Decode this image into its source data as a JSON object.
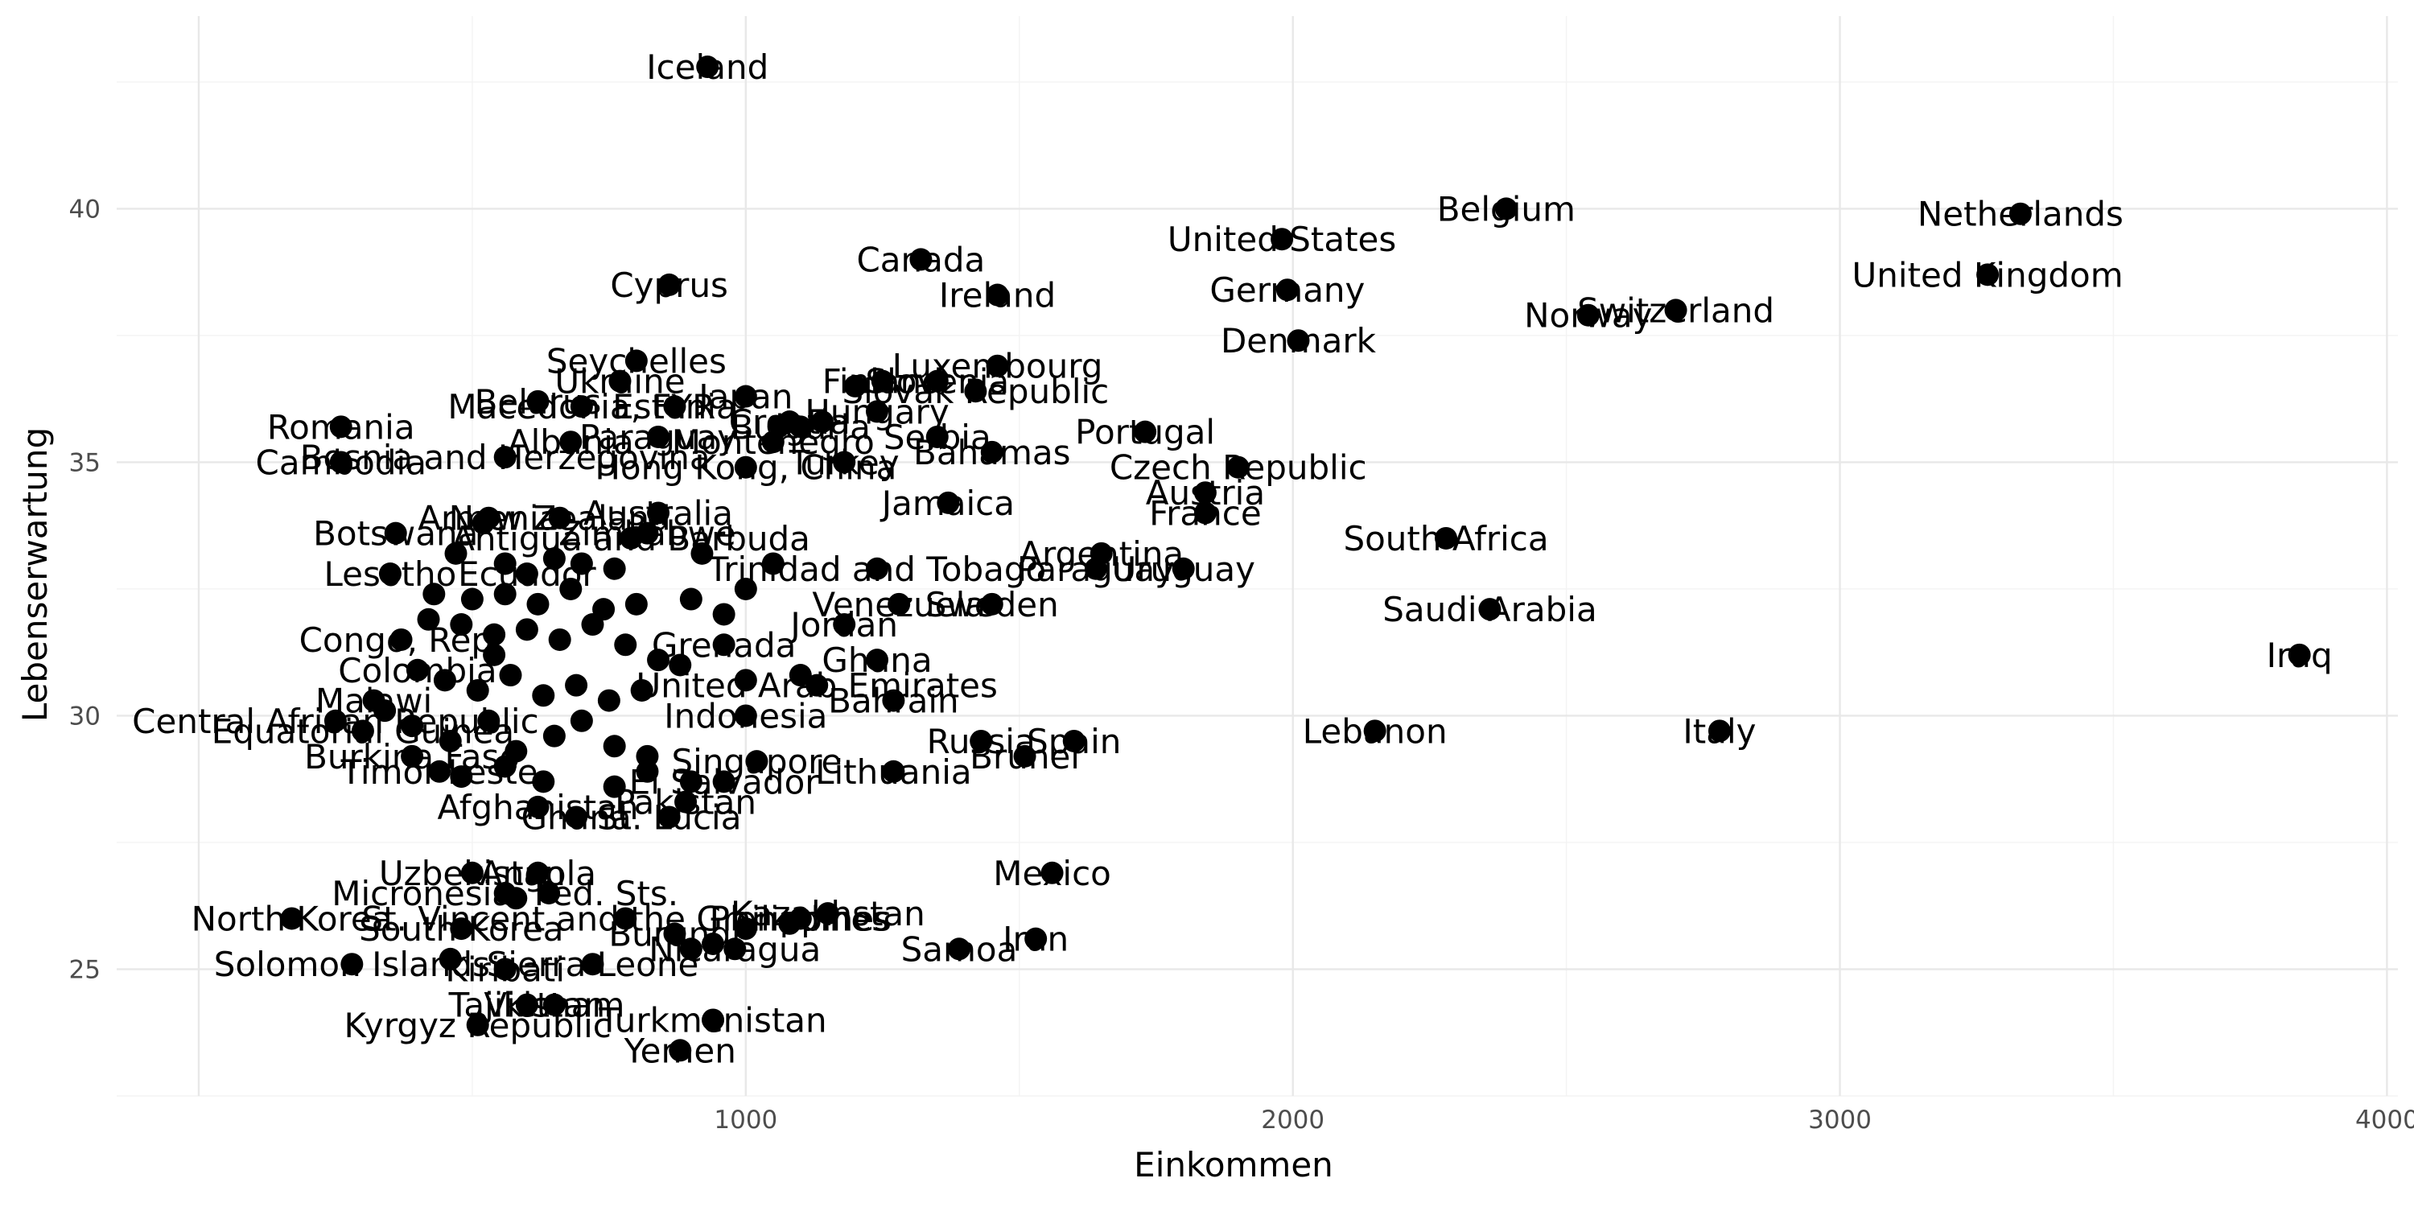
{
  "chart_data": {
    "type": "scatter",
    "xlabel": "Einkommen",
    "ylabel": "Lebenserwartung",
    "xlim": [
      -150,
      4020
    ],
    "ylim": [
      22.5,
      43.8
    ],
    "x_ticks": [
      1000,
      2000,
      3000,
      4000
    ],
    "x_tick_labels": [
      "1000",
      "2000",
      "3000",
      "4000"
    ],
    "y_ticks": [
      25,
      30,
      35,
      40
    ],
    "y_tick_labels": [
      "25",
      "30",
      "35",
      "40"
    ],
    "grid": true,
    "legend": "none",
    "points": [
      {
        "label": "Iceland",
        "x": 930,
        "y": 42.8
      },
      {
        "label": "Belgium",
        "x": 2390,
        "y": 40.0
      },
      {
        "label": "Netherlands",
        "x": 3330,
        "y": 39.9
      },
      {
        "label": "United States",
        "x": 1980,
        "y": 39.4
      },
      {
        "label": "Canada",
        "x": 1320,
        "y": 39.0
      },
      {
        "label": "United Kingdom",
        "x": 3270,
        "y": 38.7
      },
      {
        "label": "Cyprus",
        "x": 860,
        "y": 38.5
      },
      {
        "label": "Germany",
        "x": 1990,
        "y": 38.4
      },
      {
        "label": "Ireland",
        "x": 1460,
        "y": 38.3
      },
      {
        "label": "Switzerland",
        "x": 2700,
        "y": 38.0
      },
      {
        "label": "Norway",
        "x": 2540,
        "y": 37.9
      },
      {
        "label": "Denmark",
        "x": 2010,
        "y": 37.4
      },
      {
        "label": "Seychelles",
        "x": 800,
        "y": 37.0
      },
      {
        "label": "Luxembourg",
        "x": 1460,
        "y": 36.9
      },
      {
        "label": "Ukraine",
        "x": 770,
        "y": 36.6
      },
      {
        "label": "Finland",
        "x": 1250,
        "y": 36.6
      },
      {
        "label": "Slovenia",
        "x": 1350,
        "y": 36.6
      },
      {
        "label": "Slovak Republic",
        "x": 1420,
        "y": 36.4
      },
      {
        "label": "Japan",
        "x": 1000,
        "y": 36.3
      },
      {
        "label": "Belarus",
        "x": 620,
        "y": 36.2
      },
      {
        "label": "Macedonia, FYR",
        "x": 700,
        "y": 36.1
      },
      {
        "label": "Estonia",
        "x": 870,
        "y": 36.1
      },
      {
        "label": "Hungary",
        "x": 1240,
        "y": 36.0
      },
      {
        "label": "Croatia",
        "x": 1080,
        "y": 35.8
      },
      {
        "label": "Bulgaria",
        "x": 1100,
        "y": 35.7
      },
      {
        "label": "Romania",
        "x": 260,
        "y": 35.7
      },
      {
        "label": "Portugal",
        "x": 1730,
        "y": 35.6
      },
      {
        "label": "Serbia",
        "x": 1350,
        "y": 35.5
      },
      {
        "label": "Paraguay",
        "x": 840,
        "y": 35.5
      },
      {
        "label": "Albania",
        "x": 680,
        "y": 35.4
      },
      {
        "label": "Montenegro",
        "x": 1050,
        "y": 35.4
      },
      {
        "label": "Bahamas",
        "x": 1450,
        "y": 35.2
      },
      {
        "label": "Bosnia and Herzegovina",
        "x": 560,
        "y": 35.1
      },
      {
        "label": "Cambodia",
        "x": 260,
        "y": 35.0
      },
      {
        "label": "Turkey",
        "x": 1180,
        "y": 35.0
      },
      {
        "label": "Czech Republic",
        "x": 1900,
        "y": 34.9
      },
      {
        "label": "Hong Kong, China",
        "x": 1000,
        "y": 34.9
      },
      {
        "label": "Austria",
        "x": 1840,
        "y": 34.4
      },
      {
        "label": "Jamaica",
        "x": 1370,
        "y": 34.2
      },
      {
        "label": "Australia",
        "x": 840,
        "y": 34.0
      },
      {
        "label": "France",
        "x": 1840,
        "y": 34.0
      },
      {
        "label": "Armenia",
        "x": 530,
        "y": 33.9
      },
      {
        "label": "New Zealand",
        "x": 660,
        "y": 33.9
      },
      {
        "label": "Zimbabwe",
        "x": 820,
        "y": 33.6
      },
      {
        "label": "Botswana",
        "x": 360,
        "y": 33.6
      },
      {
        "label": "Antigua and Barbuda",
        "x": 790,
        "y": 33.5
      },
      {
        "label": "South Africa",
        "x": 2280,
        "y": 33.5
      },
      {
        "label": "Argentina",
        "x": 1650,
        "y": 33.2
      },
      {
        "label": "Uruguay",
        "x": 1800,
        "y": 32.9
      },
      {
        "label": "Paraguay2",
        "x": 1640,
        "y": 32.9
      },
      {
        "label": "Trinidad and Tobago",
        "x": 1240,
        "y": 32.9
      },
      {
        "label": "Lesotho",
        "x": 350,
        "y": 32.8
      },
      {
        "label": "Ecuador",
        "x": 600,
        "y": 32.8
      },
      {
        "label": "Venezuela",
        "x": 1280,
        "y": 32.2
      },
      {
        "label": "Sweden",
        "x": 1450,
        "y": 32.2
      },
      {
        "label": "Saudi Arabia",
        "x": 2360,
        "y": 32.1
      },
      {
        "label": "Jordan",
        "x": 1180,
        "y": 31.8
      },
      {
        "label": "Congo, Rep.",
        "x": 370,
        "y": 31.5
      },
      {
        "label": "Grenada",
        "x": 960,
        "y": 31.4
      },
      {
        "label": "Iraq",
        "x": 3840,
        "y": 31.2
      },
      {
        "label": "Ghana",
        "x": 1240,
        "y": 31.1
      },
      {
        "label": "Colombia",
        "x": 400,
        "y": 30.9
      },
      {
        "label": "United Arab Emirates",
        "x": 1130,
        "y": 30.6
      },
      {
        "label": "Bahrain",
        "x": 1270,
        "y": 30.3
      },
      {
        "label": "Malawi",
        "x": 320,
        "y": 30.3
      },
      {
        "label": "Indonesia",
        "x": 1000,
        "y": 30.0
      },
      {
        "label": "Central African Republic",
        "x": 250,
        "y": 29.9
      },
      {
        "label": "Equatorial Guinea",
        "x": 300,
        "y": 29.7
      },
      {
        "label": "Lebanon",
        "x": 2150,
        "y": 29.7
      },
      {
        "label": "Italy",
        "x": 2780,
        "y": 29.7
      },
      {
        "label": "Russia",
        "x": 1430,
        "y": 29.5
      },
      {
        "label": "Spain",
        "x": 1600,
        "y": 29.5
      },
      {
        "label": "Brunei",
        "x": 1510,
        "y": 29.2
      },
      {
        "label": "Burkina Faso",
        "x": 390,
        "y": 29.2
      },
      {
        "label": "Singapore",
        "x": 1020,
        "y": 29.1
      },
      {
        "label": "Lithuania",
        "x": 1270,
        "y": 28.9
      },
      {
        "label": "Timor-Leste",
        "x": 440,
        "y": 28.9
      },
      {
        "label": "El Salvador",
        "x": 960,
        "y": 28.7
      },
      {
        "label": "Afghanistan",
        "x": 620,
        "y": 28.2
      },
      {
        "label": "Pakistan",
        "x": 890,
        "y": 28.3
      },
      {
        "label": "St. Lucia",
        "x": 860,
        "y": 28.0
      },
      {
        "label": "Ghana2",
        "x": 690,
        "y": 28.0
      },
      {
        "label": "Mexico",
        "x": 1560,
        "y": 26.9
      },
      {
        "label": "Uzbekistan",
        "x": 500,
        "y": 26.9
      },
      {
        "label": "Angola",
        "x": 620,
        "y": 26.9
      },
      {
        "label": "Micronesia, Fed. Sts.",
        "x": 560,
        "y": 26.5
      },
      {
        "label": "Kazakhstan",
        "x": 1150,
        "y": 26.1
      },
      {
        "label": "North Korea",
        "x": 170,
        "y": 26.0
      },
      {
        "label": "St. Vincent and the Grenadines",
        "x": 780,
        "y": 26.0
      },
      {
        "label": "Philippines",
        "x": 1100,
        "y": 26.0
      },
      {
        "label": "South Korea",
        "x": 480,
        "y": 25.8
      },
      {
        "label": "Burundi",
        "x": 870,
        "y": 25.7
      },
      {
        "label": "Iran",
        "x": 1530,
        "y": 25.6
      },
      {
        "label": "Samoa",
        "x": 1390,
        "y": 25.4
      },
      {
        "label": "Nicaragua",
        "x": 980,
        "y": 25.4
      },
      {
        "label": "Solomon Islands",
        "x": 280,
        "y": 25.1
      },
      {
        "label": "Sierra Leone",
        "x": 720,
        "y": 25.1
      },
      {
        "label": "Kiribati",
        "x": 560,
        "y": 25.0
      },
      {
        "label": "Tajikistan",
        "x": 600,
        "y": 24.3
      },
      {
        "label": "Vietnam",
        "x": 650,
        "y": 24.3
      },
      {
        "label": "Turkmenistan",
        "x": 940,
        "y": 24.0
      },
      {
        "label": "Kyrgyz Republic",
        "x": 510,
        "y": 23.9
      },
      {
        "label": "Yemen",
        "x": 880,
        "y": 23.4
      }
    ],
    "extra_points": [
      {
        "x": 520,
        "y": 33.8
      },
      {
        "x": 470,
        "y": 33.2
      },
      {
        "x": 560,
        "y": 33.0
      },
      {
        "x": 650,
        "y": 33.1
      },
      {
        "x": 700,
        "y": 33.0
      },
      {
        "x": 760,
        "y": 32.9
      },
      {
        "x": 430,
        "y": 32.4
      },
      {
        "x": 500,
        "y": 32.3
      },
      {
        "x": 560,
        "y": 32.4
      },
      {
        "x": 620,
        "y": 32.2
      },
      {
        "x": 680,
        "y": 32.5
      },
      {
        "x": 740,
        "y": 32.1
      },
      {
        "x": 800,
        "y": 32.2
      },
      {
        "x": 900,
        "y": 32.3
      },
      {
        "x": 960,
        "y": 32.0
      },
      {
        "x": 1050,
        "y": 33.0
      },
      {
        "x": 420,
        "y": 31.9
      },
      {
        "x": 480,
        "y": 31.8
      },
      {
        "x": 540,
        "y": 31.6
      },
      {
        "x": 600,
        "y": 31.7
      },
      {
        "x": 660,
        "y": 31.5
      },
      {
        "x": 720,
        "y": 31.8
      },
      {
        "x": 780,
        "y": 31.4
      },
      {
        "x": 840,
        "y": 31.1
      },
      {
        "x": 880,
        "y": 31.0
      },
      {
        "x": 450,
        "y": 30.7
      },
      {
        "x": 510,
        "y": 30.5
      },
      {
        "x": 570,
        "y": 30.8
      },
      {
        "x": 630,
        "y": 30.4
      },
      {
        "x": 690,
        "y": 30.6
      },
      {
        "x": 750,
        "y": 30.3
      },
      {
        "x": 810,
        "y": 30.5
      },
      {
        "x": 1000,
        "y": 30.7
      },
      {
        "x": 1100,
        "y": 30.8
      },
      {
        "x": 340,
        "y": 30.1
      },
      {
        "x": 390,
        "y": 29.8
      },
      {
        "x": 460,
        "y": 29.5
      },
      {
        "x": 530,
        "y": 29.9
      },
      {
        "x": 580,
        "y": 29.3
      },
      {
        "x": 650,
        "y": 29.6
      },
      {
        "x": 700,
        "y": 29.9
      },
      {
        "x": 760,
        "y": 29.4
      },
      {
        "x": 820,
        "y": 29.2
      },
      {
        "x": 480,
        "y": 28.8
      },
      {
        "x": 560,
        "y": 29.0
      },
      {
        "x": 630,
        "y": 28.7
      },
      {
        "x": 760,
        "y": 28.6
      },
      {
        "x": 820,
        "y": 28.9
      },
      {
        "x": 900,
        "y": 28.7
      },
      {
        "x": 640,
        "y": 26.5
      },
      {
        "x": 580,
        "y": 26.4
      },
      {
        "x": 900,
        "y": 25.4
      },
      {
        "x": 940,
        "y": 25.5
      },
      {
        "x": 1000,
        "y": 25.8
      },
      {
        "x": 1080,
        "y": 25.9
      },
      {
        "x": 460,
        "y": 25.2
      },
      {
        "x": 540,
        "y": 31.2
      },
      {
        "x": 920,
        "y": 33.2
      },
      {
        "x": 1000,
        "y": 32.5
      },
      {
        "x": 1060,
        "y": 35.7
      },
      {
        "x": 1140,
        "y": 35.8
      },
      {
        "x": 1200,
        "y": 36.5
      }
    ]
  }
}
